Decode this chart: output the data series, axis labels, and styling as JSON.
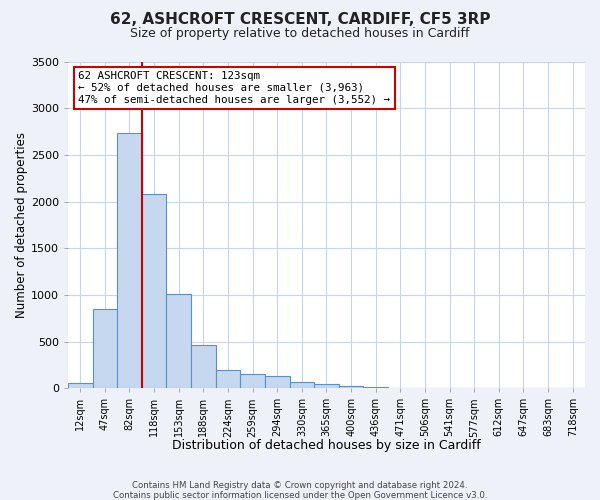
{
  "title": "62, ASHCROFT CRESCENT, CARDIFF, CF5 3RP",
  "subtitle": "Size of property relative to detached houses in Cardiff",
  "xlabel": "Distribution of detached houses by size in Cardiff",
  "ylabel": "Number of detached properties",
  "bar_labels": [
    "12sqm",
    "47sqm",
    "82sqm",
    "118sqm",
    "153sqm",
    "188sqm",
    "224sqm",
    "259sqm",
    "294sqm",
    "330sqm",
    "365sqm",
    "400sqm",
    "436sqm",
    "471sqm",
    "506sqm",
    "541sqm",
    "577sqm",
    "612sqm",
    "647sqm",
    "683sqm",
    "718sqm"
  ],
  "bar_values": [
    55,
    850,
    2730,
    2080,
    1010,
    460,
    200,
    150,
    130,
    65,
    50,
    25,
    18,
    5,
    0,
    0,
    0,
    0,
    0,
    0,
    0
  ],
  "bar_color": "#c5d8f0",
  "bar_edge_color": "#5b8fc7",
  "ylim": [
    0,
    3500
  ],
  "yticks": [
    0,
    500,
    1000,
    1500,
    2000,
    2500,
    3000,
    3500
  ],
  "vline_color": "#cc0000",
  "annotation_title": "62 ASHCROFT CRESCENT: 123sqm",
  "annotation_line1": "← 52% of detached houses are smaller (3,963)",
  "annotation_line2": "47% of semi-detached houses are larger (3,552) →",
  "annotation_box_color": "#ffffff",
  "annotation_box_edge": "#cc0000",
  "footer1": "Contains HM Land Registry data © Crown copyright and database right 2024.",
  "footer2": "Contains public sector information licensed under the Open Government Licence v3.0.",
  "background_color": "#eef2f8",
  "plot_background": "#ffffff",
  "grid_color": "#c8d4e8"
}
